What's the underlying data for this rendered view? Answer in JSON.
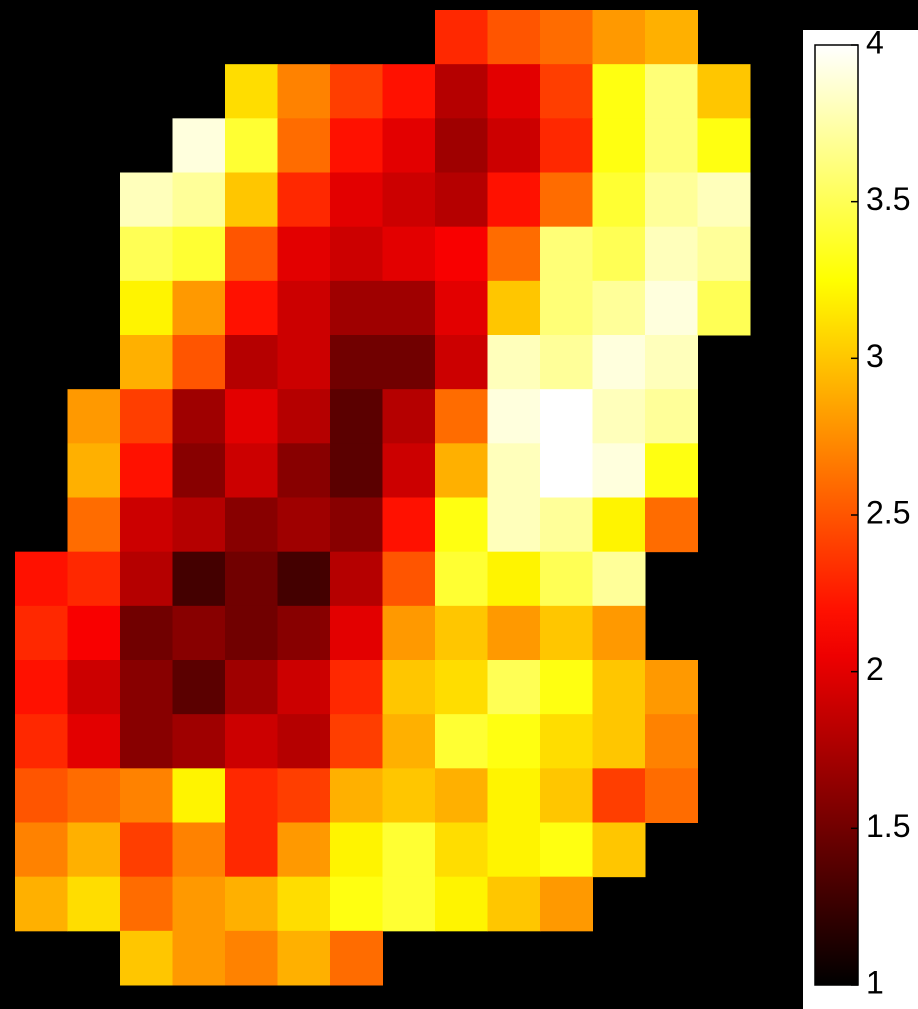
{
  "chart_data": {
    "type": "heatmap",
    "colormap": "hot",
    "z": [
      [
        null,
        null,
        null,
        null,
        null,
        null,
        null,
        null,
        2.3,
        2.5,
        2.6,
        2.8,
        2.9,
        null
      ],
      [
        null,
        null,
        null,
        null,
        3.1,
        2.7,
        2.4,
        2.2,
        1.8,
        2.0,
        2.4,
        3.3,
        3.6,
        3.0
      ],
      [
        null,
        null,
        null,
        3.9,
        3.4,
        2.6,
        2.2,
        2.0,
        1.7,
        1.9,
        2.3,
        3.3,
        3.6,
        3.3
      ],
      [
        null,
        null,
        3.8,
        3.7,
        3.0,
        2.3,
        2.0,
        1.9,
        1.8,
        2.2,
        2.6,
        3.4,
        3.7,
        3.8
      ],
      [
        null,
        null,
        3.5,
        3.4,
        2.5,
        2.0,
        1.9,
        2.0,
        2.1,
        2.6,
        3.6,
        3.5,
        3.8,
        3.7
      ],
      [
        null,
        null,
        3.2,
        2.8,
        2.2,
        1.9,
        1.7,
        1.7,
        2.0,
        3.0,
        3.6,
        3.7,
        3.9,
        3.5
      ],
      [
        null,
        null,
        2.9,
        2.5,
        1.8,
        1.9,
        1.5,
        1.5,
        1.9,
        3.8,
        3.7,
        3.9,
        3.8,
        null
      ],
      [
        null,
        2.8,
        2.4,
        1.7,
        2.0,
        1.8,
        1.4,
        1.8,
        2.6,
        3.9,
        4.0,
        3.8,
        3.7,
        null
      ],
      [
        null,
        2.9,
        2.2,
        1.6,
        1.9,
        1.6,
        1.4,
        1.9,
        2.9,
        3.8,
        4.0,
        3.9,
        3.3,
        null
      ],
      [
        null,
        2.6,
        1.9,
        1.8,
        1.6,
        1.7,
        1.6,
        2.2,
        3.3,
        3.8,
        3.7,
        3.2,
        2.6,
        null
      ],
      [
        2.2,
        2.3,
        1.8,
        1.3,
        1.5,
        1.3,
        1.8,
        2.5,
        3.4,
        3.2,
        3.5,
        3.7,
        null,
        null
      ],
      [
        2.3,
        2.1,
        1.5,
        1.6,
        1.5,
        1.6,
        2.0,
        2.8,
        3.0,
        2.8,
        3.0,
        2.8,
        null,
        null
      ],
      [
        2.2,
        1.9,
        1.6,
        1.4,
        1.7,
        1.9,
        2.3,
        3.0,
        3.1,
        3.5,
        3.3,
        3.0,
        2.8,
        null
      ],
      [
        2.3,
        2.0,
        1.6,
        1.7,
        1.9,
        1.8,
        2.4,
        2.9,
        3.4,
        3.3,
        3.1,
        3.0,
        2.7,
        null
      ],
      [
        2.5,
        2.6,
        2.7,
        3.2,
        2.3,
        2.4,
        2.9,
        3.0,
        2.9,
        3.2,
        3.0,
        2.4,
        2.6,
        null
      ],
      [
        2.7,
        2.9,
        2.4,
        2.7,
        2.3,
        2.8,
        3.2,
        3.4,
        3.1,
        3.2,
        3.3,
        3.0,
        null,
        null
      ],
      [
        2.9,
        3.1,
        2.6,
        2.8,
        2.9,
        3.1,
        3.3,
        3.4,
        3.2,
        3.0,
        2.8,
        null,
        null,
        null
      ],
      [
        null,
        null,
        3.0,
        2.8,
        2.7,
        2.9,
        2.6,
        null,
        null,
        null,
        null,
        null,
        null,
        null
      ]
    ],
    "zlim": [
      1,
      4
    ],
    "zticks": [
      1,
      1.5,
      2,
      2.5,
      3,
      3.5,
      4
    ]
  }
}
